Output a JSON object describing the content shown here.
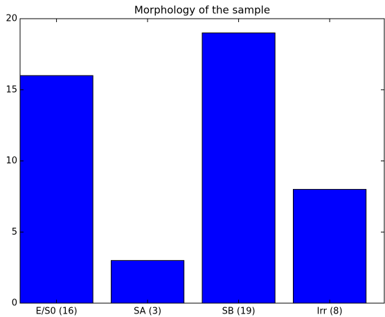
{
  "chart_data": {
    "type": "bar",
    "title": "Morphology of the sample",
    "categories": [
      "E/S0 (16)",
      "SA (3)",
      "SB (19)",
      "Irr (8)"
    ],
    "values": [
      16,
      3,
      19,
      8
    ],
    "color": "#0000ff",
    "ylim": [
      0,
      20
    ],
    "yticks": [
      0,
      5,
      10,
      15,
      20
    ]
  }
}
